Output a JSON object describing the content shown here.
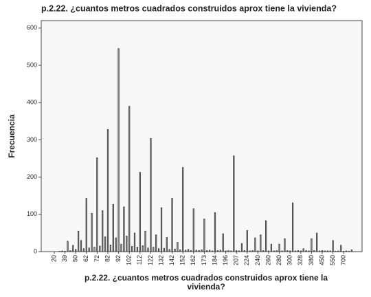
{
  "chart_data": {
    "type": "bar",
    "title": "p.2.22. ¿cuantos metros cuadrados construidos aprox tiene la vivienda?",
    "y_label": "Frecuencia",
    "x_label": [
      "p.2.22. ¿cuantos metros cuadrados construidos aprox tiene la",
      "vivienda?"
    ],
    "categories": [
      "20",
      null,
      null,
      null,
      "39",
      null,
      null,
      null,
      "50",
      null,
      null,
      null,
      "62",
      null,
      null,
      null,
      "72",
      null,
      null,
      null,
      "82",
      null,
      null,
      null,
      "92",
      null,
      null,
      null,
      "102",
      null,
      null,
      null,
      "112",
      null,
      null,
      null,
      "122",
      null,
      null,
      null,
      "132",
      null,
      null,
      null,
      "142",
      null,
      null,
      null,
      "152",
      null,
      null,
      null,
      "162",
      null,
      null,
      null,
      "173",
      null,
      null,
      null,
      "184",
      null,
      null,
      null,
      "196",
      null,
      null,
      null,
      "207",
      null,
      null,
      null,
      "224",
      null,
      null,
      null,
      "240",
      null,
      null,
      null,
      "260",
      null,
      null,
      null,
      "280",
      null,
      null,
      null,
      "300",
      null,
      null,
      null,
      "328",
      null,
      null,
      null,
      "380",
      null,
      null,
      null,
      "450",
      null,
      null,
      null,
      "550",
      null,
      null,
      null,
      "700",
      null,
      null,
      null
    ],
    "values": [
      0,
      0,
      1,
      2,
      1,
      28,
      3,
      17,
      6,
      55,
      30,
      8,
      143,
      10,
      103,
      12,
      252,
      15,
      110,
      40,
      328,
      18,
      127,
      37,
      545,
      20,
      120,
      42,
      390,
      14,
      50,
      12,
      213,
      16,
      55,
      10,
      304,
      12,
      45,
      8,
      118,
      9,
      38,
      6,
      143,
      7,
      25,
      5,
      226,
      4,
      6,
      3,
      115,
      4,
      3,
      5,
      88,
      3,
      4,
      2,
      105,
      3,
      4,
      48,
      2,
      3,
      2,
      257,
      3,
      2,
      22,
      3,
      57,
      2,
      3,
      37,
      2,
      45,
      3,
      83,
      2,
      20,
      2,
      3,
      20,
      2,
      35,
      3,
      2,
      131,
      2,
      3,
      2,
      8,
      3,
      2,
      35,
      3,
      50,
      2,
      3,
      2,
      2,
      2,
      30,
      1,
      2,
      17,
      1,
      2,
      1,
      5
    ],
    "color": "#8a8a8a",
    "ylim": [
      0,
      620
    ],
    "yticks": [
      0,
      100,
      200,
      300,
      400,
      500,
      600
    ],
    "grid": false
  }
}
